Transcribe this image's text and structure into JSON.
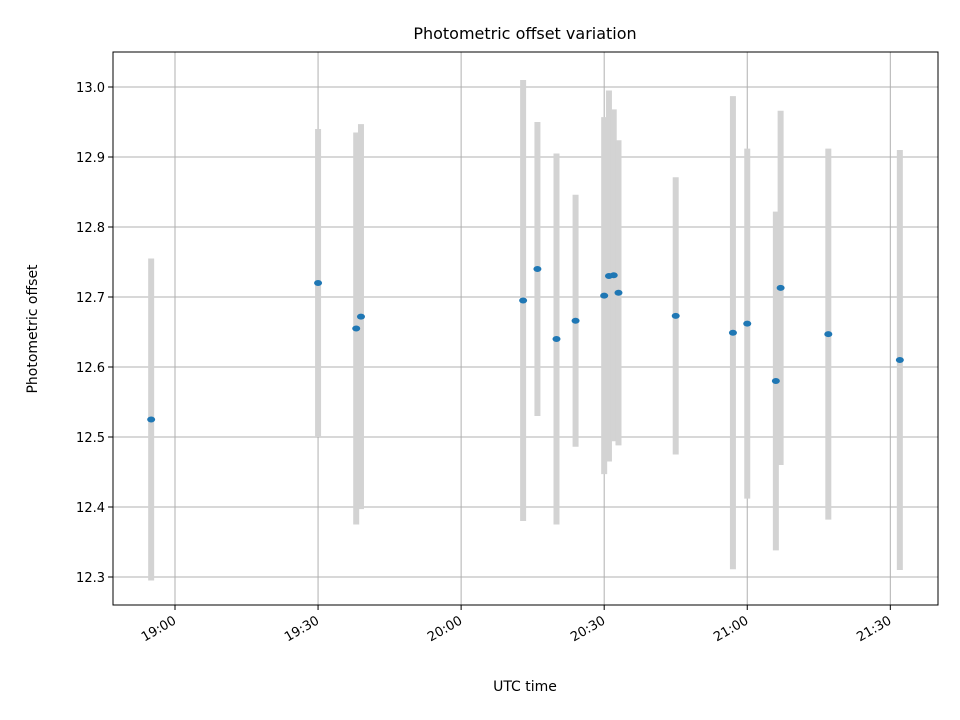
{
  "chart_data": {
    "type": "scatter",
    "title": "Photometric offset variation",
    "xlabel": "UTC time",
    "ylabel": "Photometric offset",
    "x_ticks": [
      "19:00",
      "19:30",
      "20:00",
      "20:30",
      "21:00",
      "21:30"
    ],
    "y_ticks": [
      "12.3",
      "12.4",
      "12.5",
      "12.6",
      "12.7",
      "12.8",
      "12.9",
      "13.0"
    ],
    "xlim": [
      "18:47",
      "21:40"
    ],
    "ylim": [
      12.26,
      13.05
    ],
    "grid": true,
    "marker_color": "#1f77b4",
    "errorbar_color": "#d3d3d3",
    "points": [
      {
        "t": "18:55",
        "y": 12.525,
        "err": 0.23
      },
      {
        "t": "19:30",
        "y": 12.72,
        "err": 0.22
      },
      {
        "t": "19:38",
        "y": 12.655,
        "err": 0.28
      },
      {
        "t": "19:39",
        "y": 12.672,
        "err": 0.275
      },
      {
        "t": "20:13",
        "y": 12.695,
        "err": 0.315
      },
      {
        "t": "20:16",
        "y": 12.74,
        "err": 0.21
      },
      {
        "t": "20:20",
        "y": 12.64,
        "err": 0.265
      },
      {
        "t": "20:24",
        "y": 12.666,
        "err": 0.18
      },
      {
        "t": "20:30",
        "y": 12.702,
        "err": 0.255
      },
      {
        "t": "20:31",
        "y": 12.73,
        "err": 0.265
      },
      {
        "t": "20:32",
        "y": 12.731,
        "err": 0.237
      },
      {
        "t": "20:33",
        "y": 12.706,
        "err": 0.218
      },
      {
        "t": "20:45",
        "y": 12.673,
        "err": 0.198
      },
      {
        "t": "20:57",
        "y": 12.649,
        "err": 0.338
      },
      {
        "t": "21:00",
        "y": 12.662,
        "err": 0.25
      },
      {
        "t": "21:06",
        "y": 12.58,
        "err": 0.242
      },
      {
        "t": "21:07",
        "y": 12.713,
        "err": 0.253
      },
      {
        "t": "21:17",
        "y": 12.647,
        "err": 0.265
      },
      {
        "t": "21:32",
        "y": 12.61,
        "err": 0.3
      }
    ]
  }
}
